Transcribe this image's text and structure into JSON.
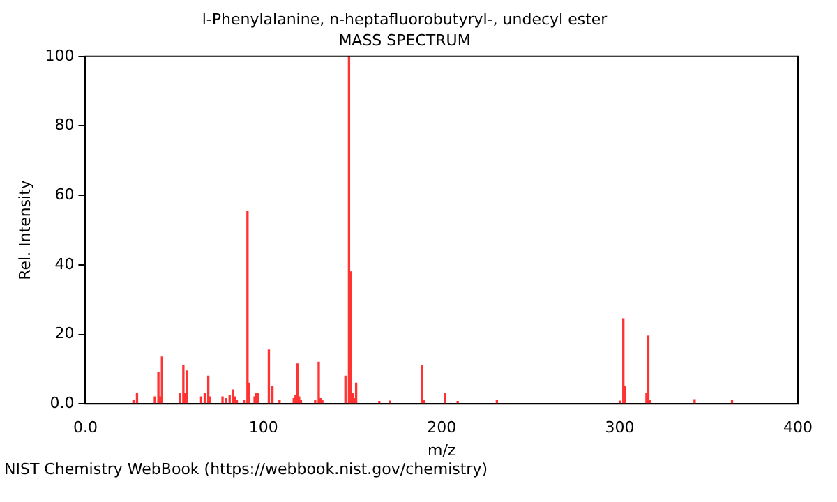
{
  "chart_data": {
    "type": "bar",
    "title": "l-Phenylalanine, n-heptafluorobutyryl-, undecyl ester",
    "subtitle": "MASS SPECTRUM",
    "xlabel": "m/z",
    "ylabel": "Rel. Intensity",
    "x": [
      27,
      29,
      39,
      41,
      42,
      43,
      53,
      55,
      56,
      57,
      65,
      67,
      69,
      70,
      77,
      79,
      81,
      83,
      84,
      85,
      89,
      91,
      92,
      95,
      96,
      97,
      103,
      105,
      109,
      117,
      118,
      119,
      120,
      121,
      129,
      131,
      132,
      133,
      146,
      148,
      149,
      150,
      151,
      152,
      165,
      171,
      189,
      190,
      202,
      209,
      231,
      300,
      302,
      303,
      315,
      316,
      317,
      342,
      363
    ],
    "series": [
      {
        "color": "#ff3333",
        "values": [
          1,
          3,
          2,
          9,
          2,
          13.5,
          3,
          11,
          3,
          9.5,
          2,
          3,
          8,
          2,
          2,
          1.5,
          2.5,
          4,
          2,
          1,
          1,
          55.5,
          6,
          2,
          3,
          3,
          15.5,
          5,
          1,
          1.5,
          2.5,
          11.5,
          2,
          1,
          1,
          12,
          1.5,
          1,
          8,
          100,
          38,
          3,
          1.5,
          6,
          0.7,
          0.8,
          11,
          1,
          3,
          0.7,
          1,
          0.8,
          24.5,
          5,
          3,
          19.5,
          1,
          1.2,
          1
        ]
      }
    ],
    "xlim": [
      0,
      400
    ],
    "xticks": [
      {
        "value": 0,
        "label": "0.0"
      },
      100,
      200,
      300,
      400
    ],
    "ylim": [
      0,
      100
    ],
    "yticks": [
      {
        "value": 0,
        "label": "0.0"
      },
      20,
      40,
      60,
      80,
      100
    ],
    "grid": false,
    "legend": false,
    "annotations": [
      "NIST Chemistry WebBook (https://webbook.nist.gov/chemistry)"
    ]
  }
}
